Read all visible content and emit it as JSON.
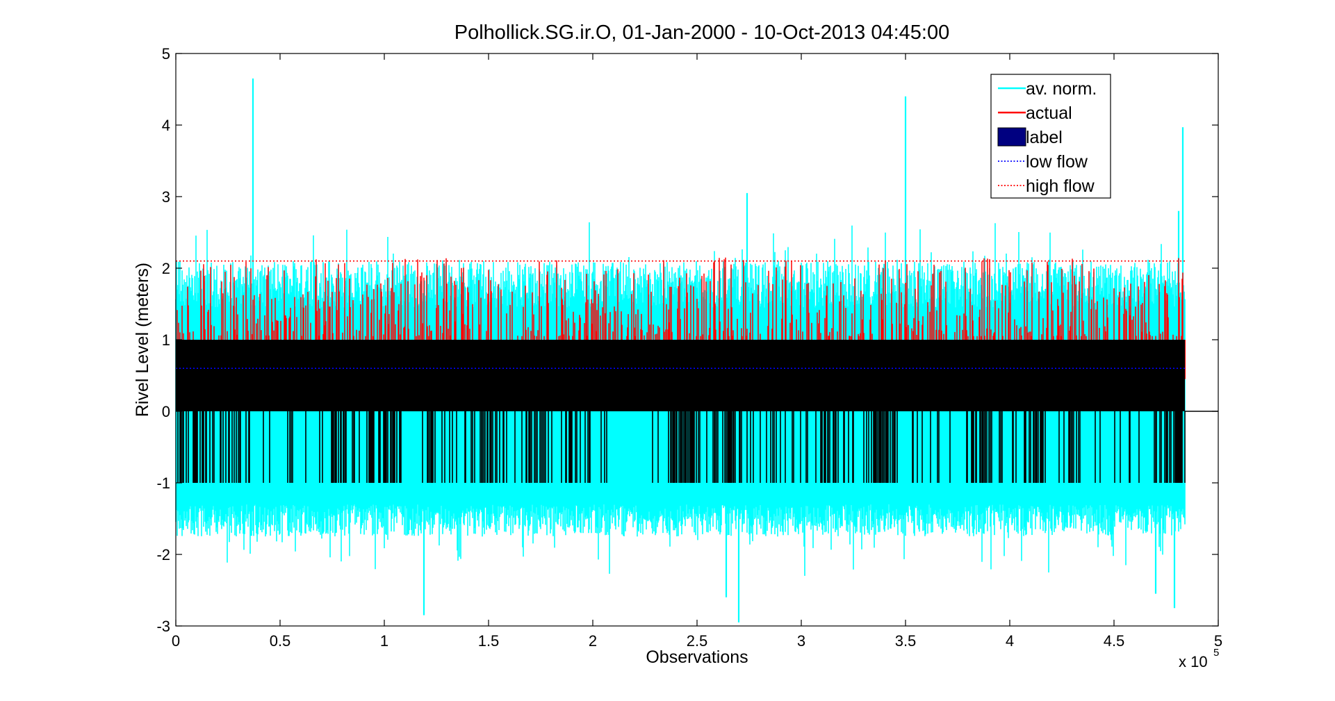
{
  "chart_data": {
    "type": "line",
    "title": "Polhollick.SG.ir.O, 01-Jan-2000 - 10-Oct-2013 04:45:00",
    "xlabel": "Observations",
    "ylabel": "Rivel Level (meters)",
    "x_exponent_label": "x 10",
    "x_exponent_power": "5",
    "xlim": [
      0,
      500000
    ],
    "ylim": [
      -3,
      5
    ],
    "x_data_end": 484000,
    "x_tick_values": [
      0,
      50000,
      100000,
      150000,
      200000,
      250000,
      300000,
      350000,
      400000,
      450000,
      500000
    ],
    "x_tick_labels": [
      "0",
      "0.5",
      "1",
      "1.5",
      "2",
      "2.5",
      "3",
      "3.5",
      "4",
      "4.5",
      "5"
    ],
    "y_tick_values": [
      -3,
      -2,
      -1,
      0,
      1,
      2,
      3,
      4,
      5
    ],
    "y_tick_labels": [
      "-3",
      "-2",
      "-1",
      "0",
      "1",
      "2",
      "3",
      "4",
      "5"
    ],
    "grid": false,
    "legend_position": "top-right",
    "series": [
      {
        "name": "av. norm.",
        "kind": "noisy-line",
        "color": "#00ffff",
        "typical_range": [
          -1.6,
          2.0
        ],
        "peaks": [
          {
            "x": 37000,
            "y": 4.65
          },
          {
            "x": 350000,
            "y": 4.4
          },
          {
            "x": 483000,
            "y": 3.97
          },
          {
            "x": 274000,
            "y": 3.05
          },
          {
            "x": 481000,
            "y": 2.8
          },
          {
            "x": 119000,
            "y": -2.85
          },
          {
            "x": 270000,
            "y": -2.95
          },
          {
            "x": 264000,
            "y": -2.6
          },
          {
            "x": 470000,
            "y": -2.55
          },
          {
            "x": 479000,
            "y": -2.75
          }
        ]
      },
      {
        "name": "actual",
        "kind": "spikes",
        "color": "#ff0000",
        "typical_range": [
          0.45,
          2.15
        ]
      },
      {
        "name": "label",
        "kind": "filled-band",
        "color": "#000080",
        "band": [
          0,
          1
        ],
        "negative_band": [
          -1,
          0
        ],
        "render_color": "#000000"
      },
      {
        "name": "low flow",
        "kind": "threshold",
        "color": "#0000ff",
        "style": "dotted",
        "y": 0.6
      },
      {
        "name": "high flow",
        "kind": "threshold",
        "color": "#ff0000",
        "style": "dotted",
        "y": 2.1
      }
    ]
  }
}
